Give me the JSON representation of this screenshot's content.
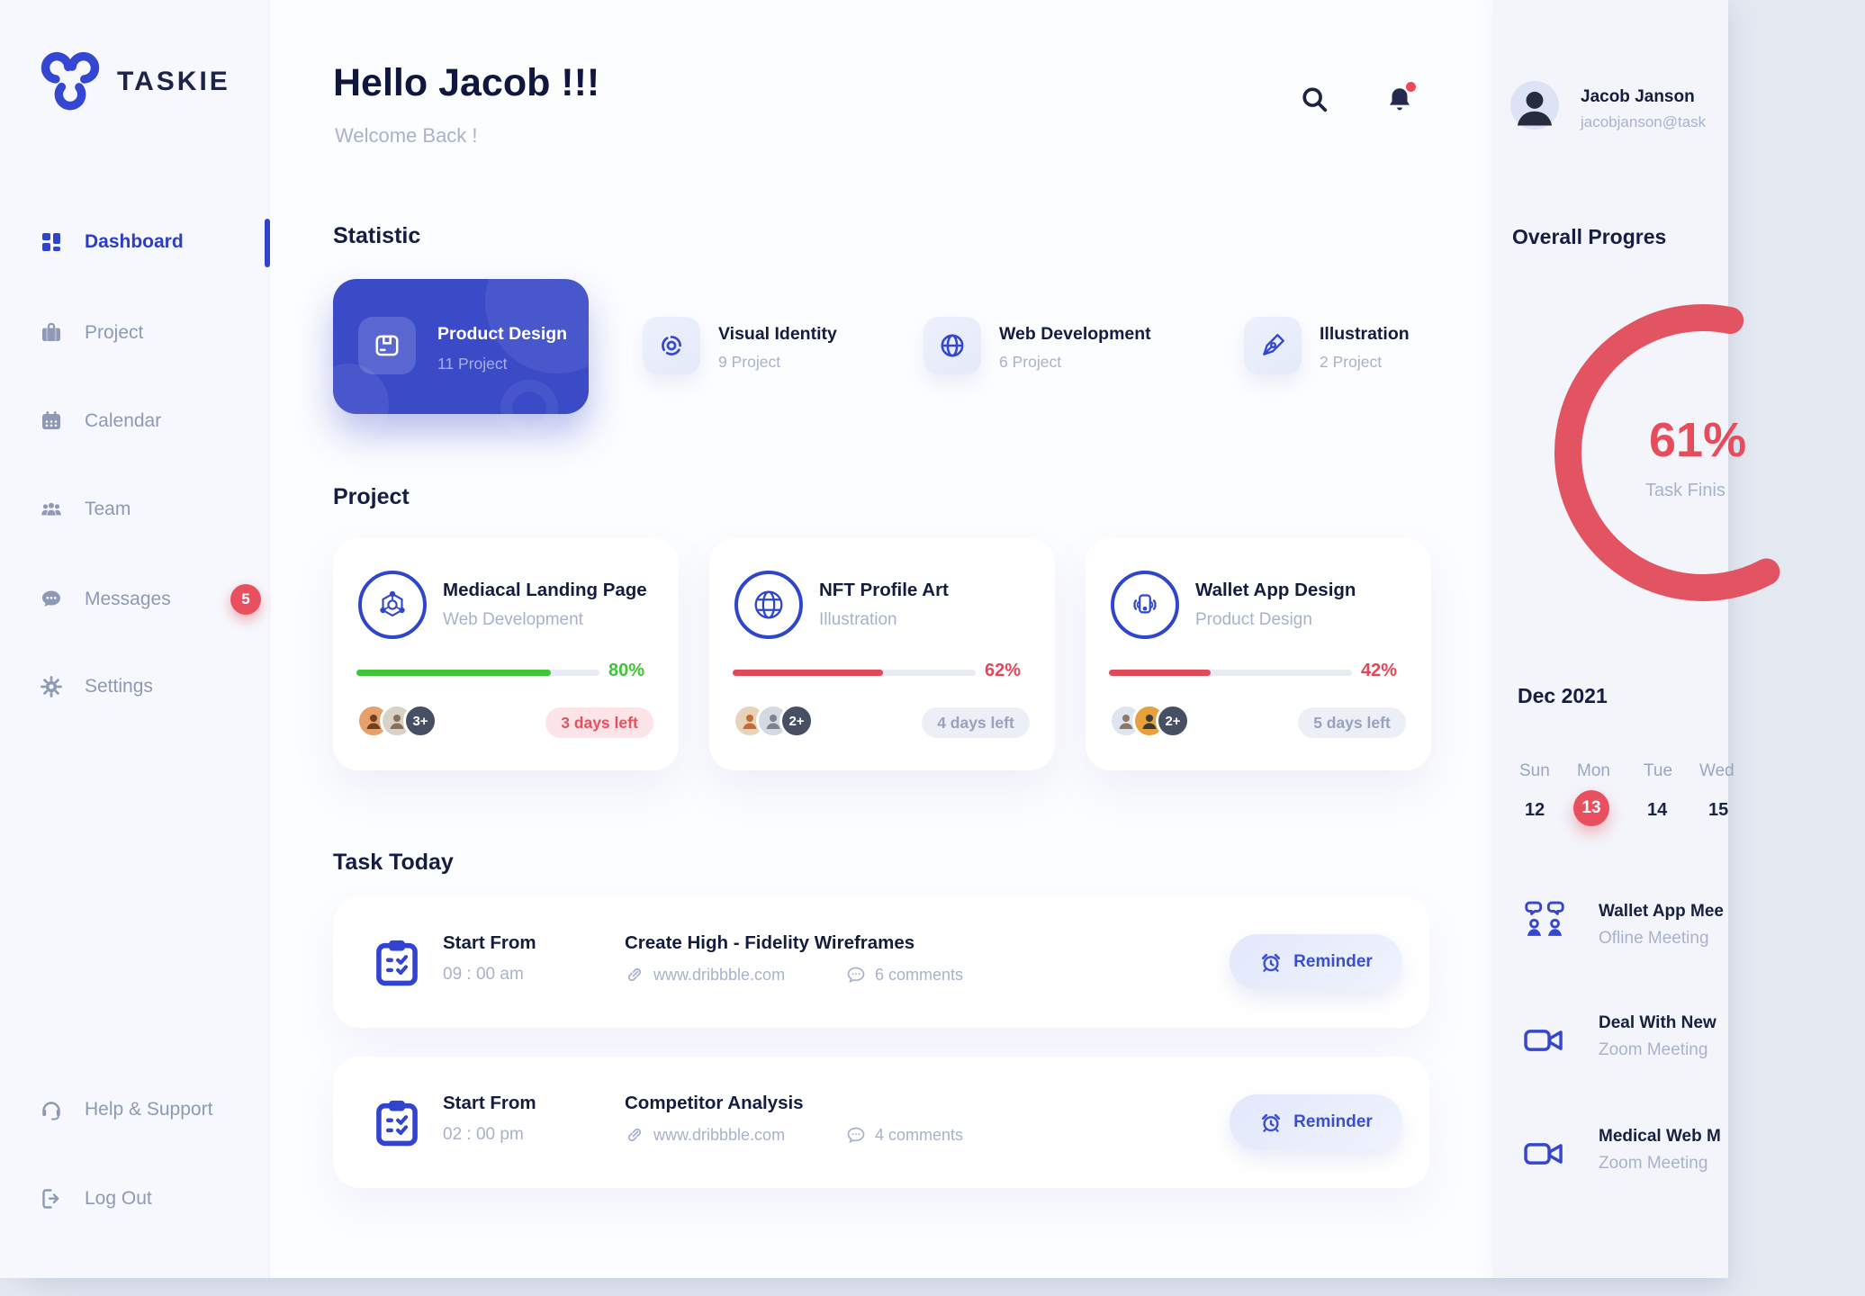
{
  "app": {
    "brand": "TASKIE"
  },
  "colors": {
    "primary": "#3243cb",
    "red": "#e8505f",
    "green": "#3fc43a",
    "navy": "#141c40"
  },
  "sidebar": {
    "items": [
      {
        "label": "Dashboard",
        "icon": "dashboard-icon",
        "active": true
      },
      {
        "label": "Project",
        "icon": "briefcase-icon"
      },
      {
        "label": "Calendar",
        "icon": "calendar-icon"
      },
      {
        "label": "Team",
        "icon": "team-icon"
      },
      {
        "label": "Messages",
        "icon": "chat-icon",
        "badge": "5"
      },
      {
        "label": "Settings",
        "icon": "gear-icon"
      }
    ],
    "footer_items": [
      {
        "label": "Help & Support",
        "icon": "headset-icon"
      },
      {
        "label": "Log Out",
        "icon": "logout-icon"
      }
    ]
  },
  "header": {
    "greeting": "Hello Jacob !!!",
    "subtitle": "Welcome Back !"
  },
  "statistic": {
    "title": "Statistic",
    "cards": [
      {
        "label": "Product Design",
        "count": "11 Project",
        "icon": "box-icon"
      },
      {
        "label": "Visual Identity",
        "count": "9 Project",
        "icon": "swirl-icon"
      },
      {
        "label": "Web Development",
        "count": "6 Project",
        "icon": "globe-icon"
      },
      {
        "label": "Illustration",
        "count": "2 Project",
        "icon": "pen-nib-icon"
      }
    ]
  },
  "projects": {
    "title": "Project",
    "cards": [
      {
        "name": "Mediacal Landing Page",
        "category": "Web Development",
        "icon": "hexagon-node-icon",
        "progress": 80,
        "progress_label": "80%",
        "days_left": "3 days left",
        "extra_members": "3+"
      },
      {
        "name": "NFT Profile Art",
        "category": "Illustration",
        "icon": "globe-wire-icon",
        "progress": 62,
        "progress_label": "62%",
        "days_left": "4 days left",
        "extra_members": "2+"
      },
      {
        "name": "Wallet App Design",
        "category": "Product Design",
        "icon": "phone-wave-icon",
        "progress": 42,
        "progress_label": "42%",
        "days_left": "5 days left",
        "extra_members": "2+"
      }
    ]
  },
  "tasks": {
    "title": "Task Today",
    "rows": [
      {
        "start_label": "Start From",
        "time": "09 : 00 am",
        "name": "Create High - Fidelity Wireframes",
        "link": "www.dribbble.com",
        "comments": "6 comments",
        "action": "Reminder"
      },
      {
        "start_label": "Start From",
        "time": "02 : 00 pm",
        "name": "Competitor Analysis",
        "link": "www.dribbble.com",
        "comments": "4 comments",
        "action": "Reminder"
      }
    ]
  },
  "profile": {
    "name": "Jacob Janson",
    "email": "jacobjanson@task"
  },
  "overall": {
    "title": "Overall Progres",
    "percent_value": 61,
    "percent_label": "61%",
    "caption": "Task Finis"
  },
  "calendar": {
    "month": "Dec 2021",
    "days": [
      "Sun",
      "Mon",
      "Tue",
      "Wed"
    ],
    "dates": [
      "12",
      "13",
      "14",
      "15"
    ],
    "selected_date": "13"
  },
  "meetings": [
    {
      "name": "Wallet App Mee",
      "type": "Ofline Meeting",
      "icon": "people-meeting-icon"
    },
    {
      "name": "Deal With New",
      "type": "Zoom Meeting",
      "icon": "video-camera-icon"
    },
    {
      "name": "Medical Web M",
      "type": "Zoom Meeting",
      "icon": "video-camera-icon"
    }
  ]
}
